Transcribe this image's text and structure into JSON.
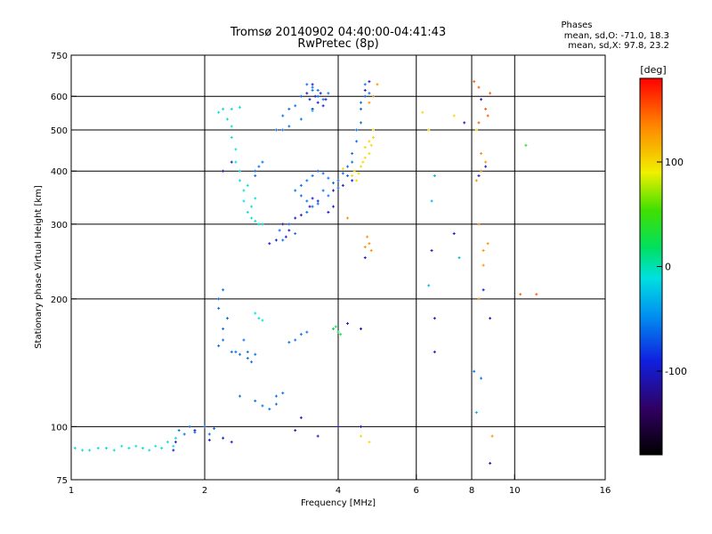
{
  "chart_data": {
    "type": "scatter",
    "title": "Tromsø 20140902 04:40:00-04:41:43",
    "subtitle": "RwPretec (8p)",
    "xlabel": "Frequency [MHz]",
    "ylabel": "Stationary phase Virtual Height [km]",
    "x_scale": "log",
    "y_scale": "log",
    "xlim": [
      1,
      16
    ],
    "ylim": [
      75,
      750
    ],
    "x_ticks": [
      1,
      2,
      4,
      6,
      8,
      10,
      16
    ],
    "x_tick_labels": [
      "1",
      "2",
      "4",
      "6",
      "8",
      "10",
      "16"
    ],
    "y_ticks": [
      75,
      100,
      200,
      300,
      400,
      500,
      600,
      750
    ],
    "y_tick_labels": [
      "75",
      "100",
      "200",
      "300",
      "400",
      "500",
      "600",
      "750"
    ],
    "grid": true,
    "phase_info": {
      "heading": "Phases",
      "line_o": "mean, sd,O: -71.0, 18.3",
      "line_x": "mean, sd,X:  97.8, 23.2"
    },
    "colorbar": {
      "label": "[deg]",
      "range": [
        -180,
        180
      ],
      "ticks": [
        100,
        0,
        -100
      ],
      "tick_labels": [
        "100",
        "0",
        "-100"
      ]
    },
    "series": [
      {
        "color_value": -10,
        "points": [
          [
            1.02,
            89
          ],
          [
            1.06,
            88
          ],
          [
            1.1,
            88
          ],
          [
            1.15,
            89
          ],
          [
            1.2,
            89
          ],
          [
            1.25,
            88
          ],
          [
            1.3,
            90
          ],
          [
            1.35,
            89
          ],
          [
            1.4,
            90
          ],
          [
            1.45,
            89
          ],
          [
            1.5,
            88
          ],
          [
            1.55,
            90
          ],
          [
            1.6,
            89
          ],
          [
            1.65,
            92
          ],
          [
            1.7,
            90
          ],
          [
            1.72,
            94
          ],
          [
            2.15,
            550
          ],
          [
            2.2,
            560
          ],
          [
            2.25,
            530
          ],
          [
            2.3,
            510
          ],
          [
            2.3,
            480
          ],
          [
            2.35,
            450
          ],
          [
            2.35,
            420
          ],
          [
            2.4,
            400
          ],
          [
            2.4,
            380
          ],
          [
            2.45,
            360
          ],
          [
            2.45,
            340
          ],
          [
            2.5,
            320
          ],
          [
            2.55,
            310
          ],
          [
            2.6,
            305
          ],
          [
            2.65,
            300
          ],
          [
            2.7,
            300
          ],
          [
            2.55,
            330
          ],
          [
            2.6,
            345
          ],
          [
            2.5,
            370
          ],
          [
            2.3,
            560
          ],
          [
            2.4,
            565
          ],
          [
            2.6,
            185
          ],
          [
            2.65,
            180
          ],
          [
            2.7,
            178
          ]
        ]
      },
      {
        "color_value": -60,
        "points": [
          [
            1.75,
            98
          ],
          [
            1.8,
            96
          ],
          [
            1.85,
            100
          ],
          [
            1.9,
            97
          ],
          [
            2.0,
            100
          ],
          [
            2.05,
            96
          ],
          [
            2.1,
            99
          ],
          [
            2.15,
            200
          ],
          [
            2.2,
            210
          ],
          [
            2.15,
            190
          ],
          [
            2.25,
            180
          ],
          [
            2.2,
            170
          ],
          [
            2.2,
            160
          ],
          [
            2.15,
            155
          ],
          [
            2.3,
            150
          ],
          [
            2.4,
            148
          ],
          [
            2.5,
            150
          ],
          [
            2.6,
            148
          ],
          [
            2.45,
            160
          ],
          [
            2.4,
            118
          ],
          [
            2.6,
            115
          ],
          [
            2.7,
            112
          ],
          [
            2.8,
            110
          ],
          [
            2.9,
            113
          ],
          [
            3.0,
            120
          ],
          [
            2.9,
            118
          ],
          [
            3.2,
            360
          ],
          [
            3.3,
            350
          ],
          [
            3.4,
            340
          ],
          [
            3.3,
            370
          ],
          [
            3.4,
            380
          ],
          [
            3.5,
            390
          ],
          [
            3.6,
            400
          ],
          [
            3.7,
            395
          ],
          [
            3.8,
            385
          ],
          [
            3.9,
            375
          ],
          [
            3.7,
            360
          ],
          [
            3.8,
            350
          ],
          [
            4.0,
            380
          ],
          [
            4.1,
            395
          ],
          [
            4.2,
            410
          ],
          [
            4.3,
            440
          ],
          [
            4.4,
            470
          ],
          [
            4.5,
            520
          ],
          [
            4.5,
            560
          ],
          [
            4.6,
            600
          ],
          [
            4.6,
            640
          ],
          [
            4.7,
            610
          ],
          [
            4.5,
            580
          ],
          [
            4.4,
            500
          ],
          [
            4.3,
            420
          ],
          [
            4.2,
            390
          ],
          [
            4.0,
            365
          ],
          [
            3.5,
            330
          ],
          [
            3.4,
            320
          ],
          [
            3.6,
            335
          ],
          [
            3.1,
            300
          ],
          [
            3.2,
            285
          ],
          [
            3.0,
            275
          ],
          [
            2.95,
            290
          ],
          [
            3.4,
            640
          ],
          [
            3.5,
            620
          ],
          [
            3.6,
            600
          ],
          [
            3.7,
            590
          ],
          [
            3.8,
            610
          ],
          [
            3.3,
            600
          ],
          [
            3.2,
            570
          ],
          [
            3.1,
            560
          ],
          [
            3.0,
            540
          ],
          [
            3.3,
            530
          ],
          [
            3.5,
            630
          ],
          [
            3.6,
            620
          ],
          [
            2.9,
            500
          ],
          [
            3.0,
            500
          ],
          [
            3.1,
            510
          ],
          [
            2.6,
            390
          ],
          [
            2.65,
            410
          ],
          [
            2.7,
            420
          ],
          [
            2.6,
            400
          ],
          [
            3.2,
            160
          ],
          [
            3.3,
            165
          ],
          [
            3.4,
            167
          ],
          [
            3.1,
            158
          ],
          [
            2.5,
            145
          ],
          [
            2.55,
            142
          ],
          [
            2.35,
            150
          ],
          [
            8.1,
            135
          ],
          [
            8.4,
            130
          ]
        ]
      },
      {
        "color_value": -100,
        "points": [
          [
            1.7,
            88
          ],
          [
            1.72,
            92
          ],
          [
            1.9,
            98
          ],
          [
            2.05,
            93
          ],
          [
            2.2,
            94
          ],
          [
            2.3,
            92
          ],
          [
            3.5,
            640
          ],
          [
            3.4,
            610
          ],
          [
            3.6,
            580
          ],
          [
            3.7,
            570
          ],
          [
            3.55,
            600
          ],
          [
            3.45,
            590
          ],
          [
            3.65,
            610
          ],
          [
            3.75,
            590
          ],
          [
            3.5,
            560
          ],
          [
            4.7,
            650
          ],
          [
            4.6,
            620
          ],
          [
            4.3,
            380
          ],
          [
            4.1,
            370
          ],
          [
            3.9,
            360
          ],
          [
            3.6,
            340
          ],
          [
            3.5,
            345
          ],
          [
            3.45,
            330
          ],
          [
            3.3,
            315
          ],
          [
            3.2,
            310
          ],
          [
            3.0,
            300
          ],
          [
            3.1,
            290
          ],
          [
            3.05,
            280
          ],
          [
            2.9,
            275
          ],
          [
            2.8,
            270
          ],
          [
            3.8,
            320
          ],
          [
            3.9,
            330
          ],
          [
            2.3,
            420
          ],
          [
            2.2,
            400
          ],
          [
            4.0,
            100
          ],
          [
            3.6,
            95
          ],
          [
            3.2,
            98
          ],
          [
            4.5,
            100
          ],
          [
            4.6,
            250
          ],
          [
            6.5,
            260
          ],
          [
            7.3,
            285
          ],
          [
            8.3,
            390
          ],
          [
            8.6,
            410
          ],
          [
            8.8,
            180
          ],
          [
            7.7,
            520
          ],
          [
            8.4,
            590
          ],
          [
            6.6,
            180
          ],
          [
            6.6,
            150
          ],
          [
            4.5,
            170
          ],
          [
            4.2,
            175
          ],
          [
            8.5,
            210
          ],
          [
            8.8,
            82
          ],
          [
            3.3,
            105
          ]
        ]
      },
      {
        "color_value": 25,
        "points": [
          [
            3.9,
            170
          ],
          [
            4.0,
            167
          ],
          [
            3.95,
            172
          ],
          [
            4.05,
            165
          ]
        ]
      },
      {
        "color_value": 100,
        "points": [
          [
            4.3,
            390
          ],
          [
            4.35,
            400
          ],
          [
            4.4,
            380
          ],
          [
            4.5,
            410
          ],
          [
            4.55,
            420
          ],
          [
            4.6,
            430
          ],
          [
            4.7,
            440
          ],
          [
            4.75,
            460
          ],
          [
            4.8,
            480
          ],
          [
            4.8,
            500
          ],
          [
            4.7,
            470
          ],
          [
            4.6,
            455
          ],
          [
            4.45,
            395
          ],
          [
            4.1,
            405
          ],
          [
            6.2,
            550
          ],
          [
            6.4,
            500
          ],
          [
            7.3,
            540
          ],
          [
            8.2,
            500
          ],
          [
            4.5,
            95
          ],
          [
            4.7,
            92
          ]
        ]
      },
      {
        "color_value": 130,
        "points": [
          [
            4.9,
            640
          ],
          [
            4.8,
            600
          ],
          [
            4.7,
            580
          ],
          [
            4.6,
            265
          ],
          [
            4.7,
            270
          ],
          [
            4.75,
            260
          ],
          [
            4.65,
            280
          ],
          [
            4.2,
            310
          ],
          [
            8.4,
            440
          ],
          [
            8.6,
            420
          ],
          [
            8.3,
            300
          ],
          [
            8.5,
            260
          ],
          [
            8.5,
            240
          ],
          [
            8.7,
            270
          ],
          [
            8.4,
            400
          ],
          [
            8.3,
            200
          ],
          [
            8.9,
            95
          ],
          [
            8.2,
            380
          ]
        ]
      },
      {
        "color_value": 150,
        "points": [
          [
            8.1,
            650
          ],
          [
            8.3,
            630
          ],
          [
            8.6,
            560
          ],
          [
            8.3,
            520
          ],
          [
            8.8,
            610
          ],
          [
            8.7,
            540
          ],
          [
            10.3,
            205
          ],
          [
            11.2,
            205
          ]
        ]
      },
      {
        "color_value": 40,
        "points": [
          [
            10.6,
            460
          ]
        ]
      },
      {
        "color_value": -30,
        "points": [
          [
            6.6,
            390
          ],
          [
            6.5,
            340
          ],
          [
            6.4,
            215
          ],
          [
            7.5,
            250
          ],
          [
            8.2,
            108
          ],
          [
            3.5,
            555
          ]
        ]
      }
    ]
  }
}
